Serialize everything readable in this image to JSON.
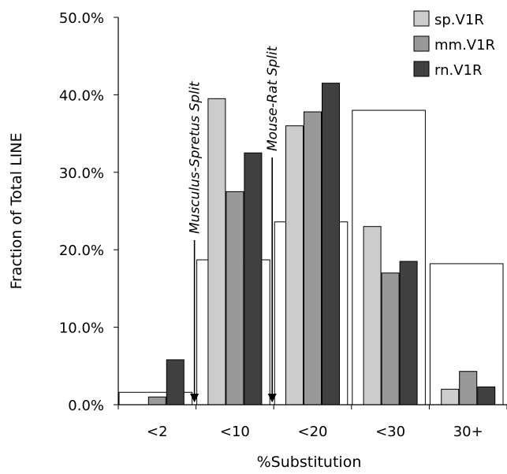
{
  "chart_data": {
    "type": "bar",
    "title": "",
    "xlabel": "%Substitution",
    "ylabel": "Fraction of Total LINE",
    "categories": [
      "<2",
      "<10",
      "<20",
      "<30",
      "30+"
    ],
    "ylim": [
      0,
      50
    ],
    "yticks": [
      0,
      10,
      20,
      30,
      40,
      50
    ],
    "ytick_labels": [
      "0.0%",
      "10.0%",
      "20.0%",
      "30.0%",
      "40.0%",
      "50.0%"
    ],
    "grid": false,
    "legend_position": "top-right",
    "series": [
      {
        "name": "sp.V1R",
        "color": "#cccccc",
        "values": [
          0.0,
          39.5,
          36.0,
          23.0,
          2.0
        ]
      },
      {
        "name": "mm.V1R",
        "color": "#999999",
        "values": [
          1.0,
          27.5,
          37.8,
          17.0,
          4.3
        ]
      },
      {
        "name": "rn.V1R",
        "color": "#404040",
        "values": [
          5.8,
          32.5,
          41.5,
          18.5,
          2.3
        ]
      }
    ],
    "background_bars": {
      "color": "#ffffff",
      "values": [
        1.6,
        18.7,
        23.6,
        38.0,
        18.2
      ]
    },
    "annotations": [
      {
        "label": "Musculus-Spretus Split",
        "at_boundary": 1
      },
      {
        "label": "Mouse-Rat Split",
        "at_boundary": 2
      }
    ]
  }
}
